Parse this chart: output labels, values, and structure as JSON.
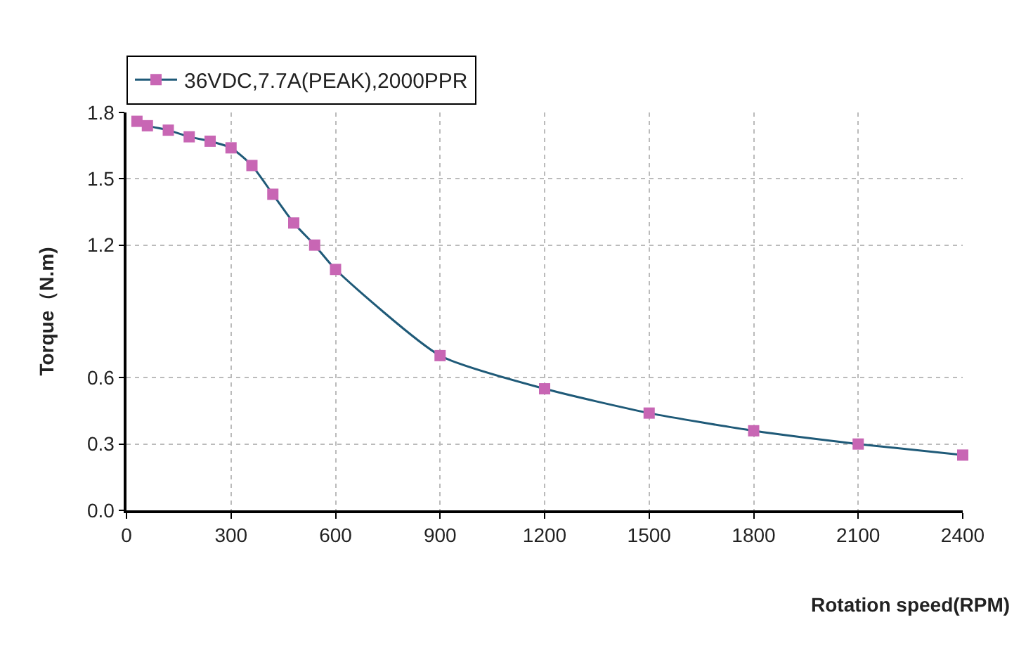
{
  "chart_data": {
    "type": "line",
    "xlabel": "Rotation speed(RPM)",
    "ylabel": "Torque（N.m)",
    "xlim": [
      0,
      2400
    ],
    "xticks": [
      0,
      300,
      600,
      900,
      1200,
      1500,
      1800,
      2100,
      2400
    ],
    "ylim": [
      0,
      1.8
    ],
    "yticks": [
      {
        "value": 0,
        "label": "0.0"
      },
      0.3,
      0.6,
      1.2,
      1.5,
      1.8
    ],
    "grid": true,
    "legend": "top",
    "marker": "square",
    "line_style": "solid",
    "series": [
      {
        "name": "36VDC,7.7A(PEAK),2000PPR",
        "color": "#1f5a78",
        "colors": [
          "#c866b4",
          "#c866b4",
          "#c866b4",
          "#c866b4",
          "#c866b4",
          "#c866b4",
          "#c866b4",
          "#c866b4",
          "#c866b4",
          "#c866b4",
          "#c866b4",
          "#c866b4",
          "#c866b4",
          "#c866b4",
          "#c866b4",
          "#c866b4",
          "#c866b4"
        ],
        "x": [
          30,
          60,
          120,
          180,
          240,
          300,
          360,
          420,
          480,
          540,
          600,
          900,
          1200,
          1500,
          1800,
          2100,
          2400
        ],
        "values": [
          1.76,
          1.74,
          1.72,
          1.69,
          1.67,
          1.64,
          1.56,
          1.43,
          1.3,
          1.2,
          1.09,
          0.7,
          0.55,
          0.44,
          0.36,
          0.3,
          0.25
        ]
      }
    ]
  }
}
